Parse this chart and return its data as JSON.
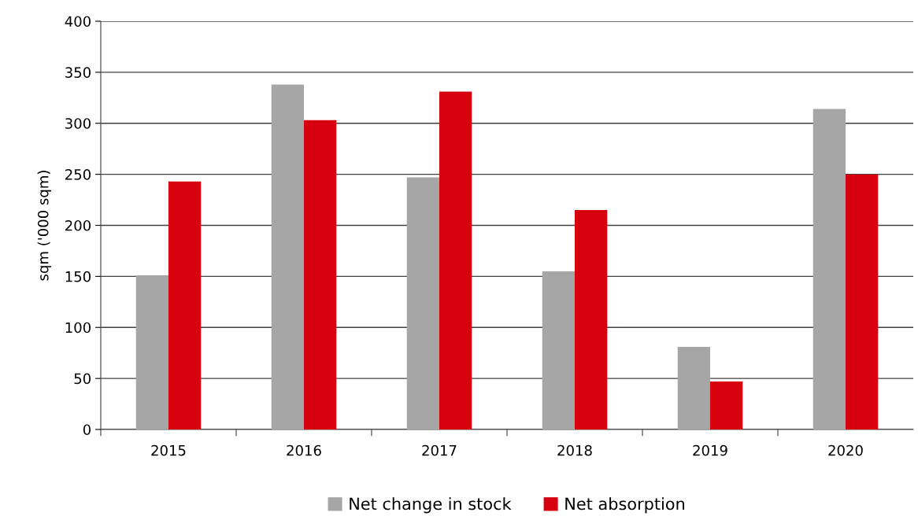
{
  "chart_data": {
    "type": "bar",
    "ylabel": "sqm ('000 sqm)",
    "categories": [
      "2015",
      "2016",
      "2017",
      "2018",
      "2019",
      "2020"
    ],
    "series": [
      {
        "name": "Net change in stock",
        "color": "#a6a6a6",
        "values": [
          151,
          338,
          247,
          155,
          81,
          314
        ]
      },
      {
        "name": "Net absorption",
        "color": "#d7000f",
        "values": [
          243,
          303,
          331,
          215,
          47,
          250
        ]
      }
    ],
    "ylim": [
      0,
      400
    ],
    "yticks": [
      0,
      50,
      100,
      150,
      200,
      250,
      300,
      350,
      400
    ],
    "grid": "y",
    "legend": "bottom"
  }
}
